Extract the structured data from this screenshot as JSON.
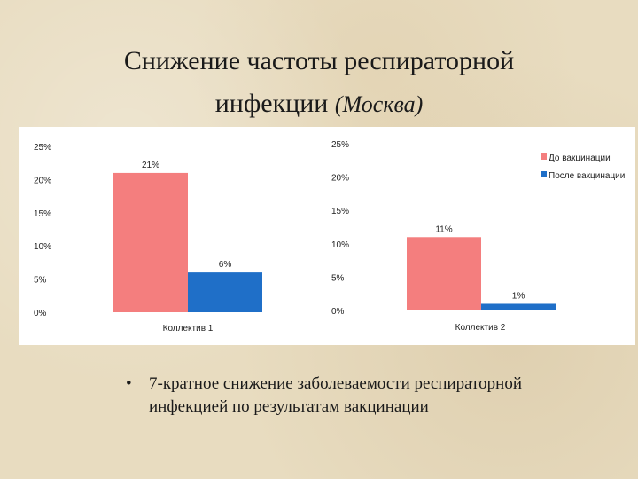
{
  "slide": {
    "title_line1": "Снижение частоты респираторной",
    "title_line2_main": "инфекции",
    "title_line2_sub": "(Москва)",
    "bullet_marker": "•",
    "bullet_text": "7-кратное снижение заболеваемости респираторной инфекцией по результатам вакцинации"
  },
  "colors": {
    "before": "#f47e7e",
    "after": "#1f6fc8"
  },
  "chart_data": [
    {
      "type": "bar",
      "categories": [
        "Коллектив 1"
      ],
      "series": [
        {
          "name": "До вакцинации",
          "values": [
            21
          ],
          "labels": [
            "21%"
          ]
        },
        {
          "name": "После вакцинации",
          "values": [
            6
          ],
          "labels": [
            "6%"
          ]
        }
      ],
      "ylim": [
        0,
        25
      ],
      "yticks": [
        "0%",
        "5%",
        "10%",
        "15%",
        "20%",
        "25%"
      ],
      "grid": false
    },
    {
      "type": "bar",
      "categories": [
        "Коллектив 2"
      ],
      "series": [
        {
          "name": "До вакцинации",
          "values": [
            11
          ],
          "labels": [
            "11%"
          ]
        },
        {
          "name": "После вакцинации",
          "values": [
            1
          ],
          "labels": [
            "1%"
          ]
        }
      ],
      "ylim": [
        0,
        25
      ],
      "yticks": [
        "0%",
        "5%",
        "10%",
        "15%",
        "20%",
        "25%"
      ],
      "legend": [
        {
          "name": "До вакцинации",
          "label": "До вакцинации"
        },
        {
          "name": "После вакцинации",
          "label": "После вакцинации"
        }
      ],
      "legend_position": "top-right",
      "grid": false
    }
  ]
}
